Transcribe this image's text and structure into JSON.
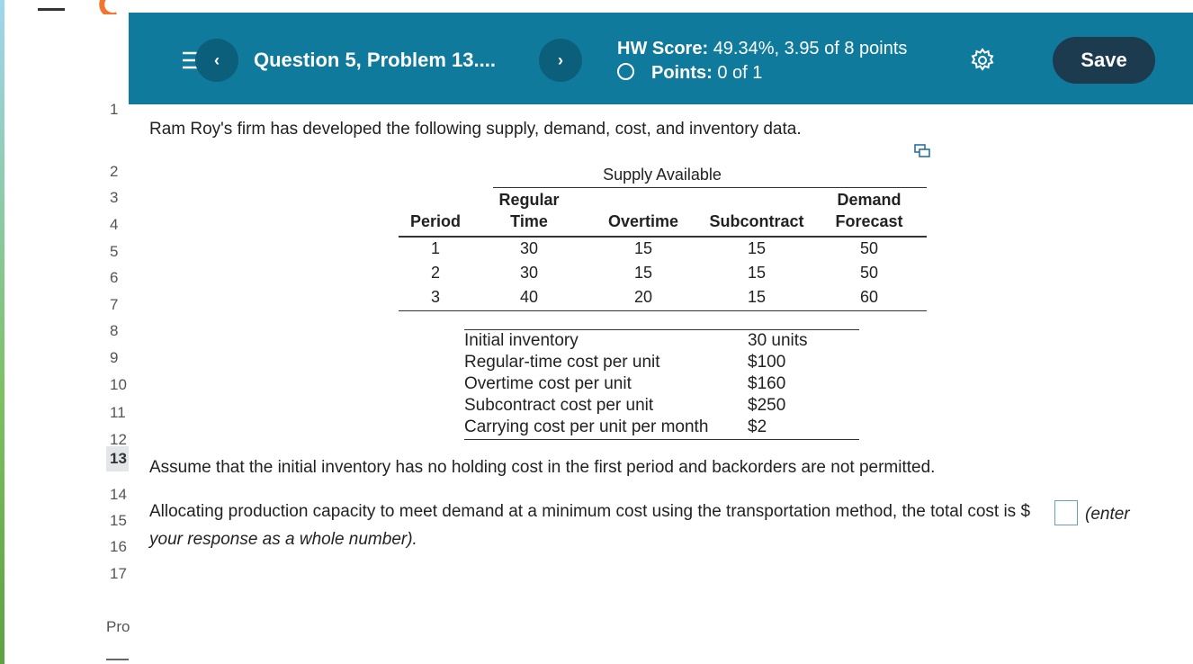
{
  "header": {
    "question_title": "Question 5, Problem 13....",
    "hw_score_label": "HW Score:",
    "hw_score_value": "49.34%, 3.95 of 8 points",
    "points_label": "Points:",
    "points_value": "0 of 1",
    "save": "Save"
  },
  "sidebar": {
    "items": [
      "1",
      "2",
      "3",
      "4",
      "5",
      "6",
      "7",
      "8",
      "9",
      "10",
      "11",
      "12",
      "13",
      "14",
      "15",
      "16",
      "17"
    ],
    "current": "13",
    "footer": "Pro"
  },
  "problem": {
    "intro": "Ram Roy's firm has developed the following supply, demand, cost, and inventory data.",
    "supply_table": {
      "group_header": "Supply Available",
      "columns": [
        "Period",
        "Regular Time",
        "Overtime",
        "Subcontract",
        "Demand Forecast"
      ],
      "rows": [
        [
          "1",
          "30",
          "15",
          "15",
          "50"
        ],
        [
          "2",
          "30",
          "15",
          "15",
          "50"
        ],
        [
          "3",
          "40",
          "20",
          "15",
          "60"
        ]
      ]
    },
    "cost_table": {
      "rows": [
        [
          "Initial inventory",
          "30 units"
        ],
        [
          "Regular-time cost per unit",
          "$100"
        ],
        [
          "Overtime cost per unit",
          "$160"
        ],
        [
          "Subcontract cost per unit",
          "$250"
        ],
        [
          "Carrying cost per unit per month",
          "$2"
        ]
      ]
    },
    "assumption": "Assume that the initial inventory has no holding cost in the first period and backorders are not permitted.",
    "question_text": "Allocating production capacity to meet demand at a minimum cost using the transportation method, the total cost is $",
    "instruction": "(enter your response as a whole number)."
  }
}
